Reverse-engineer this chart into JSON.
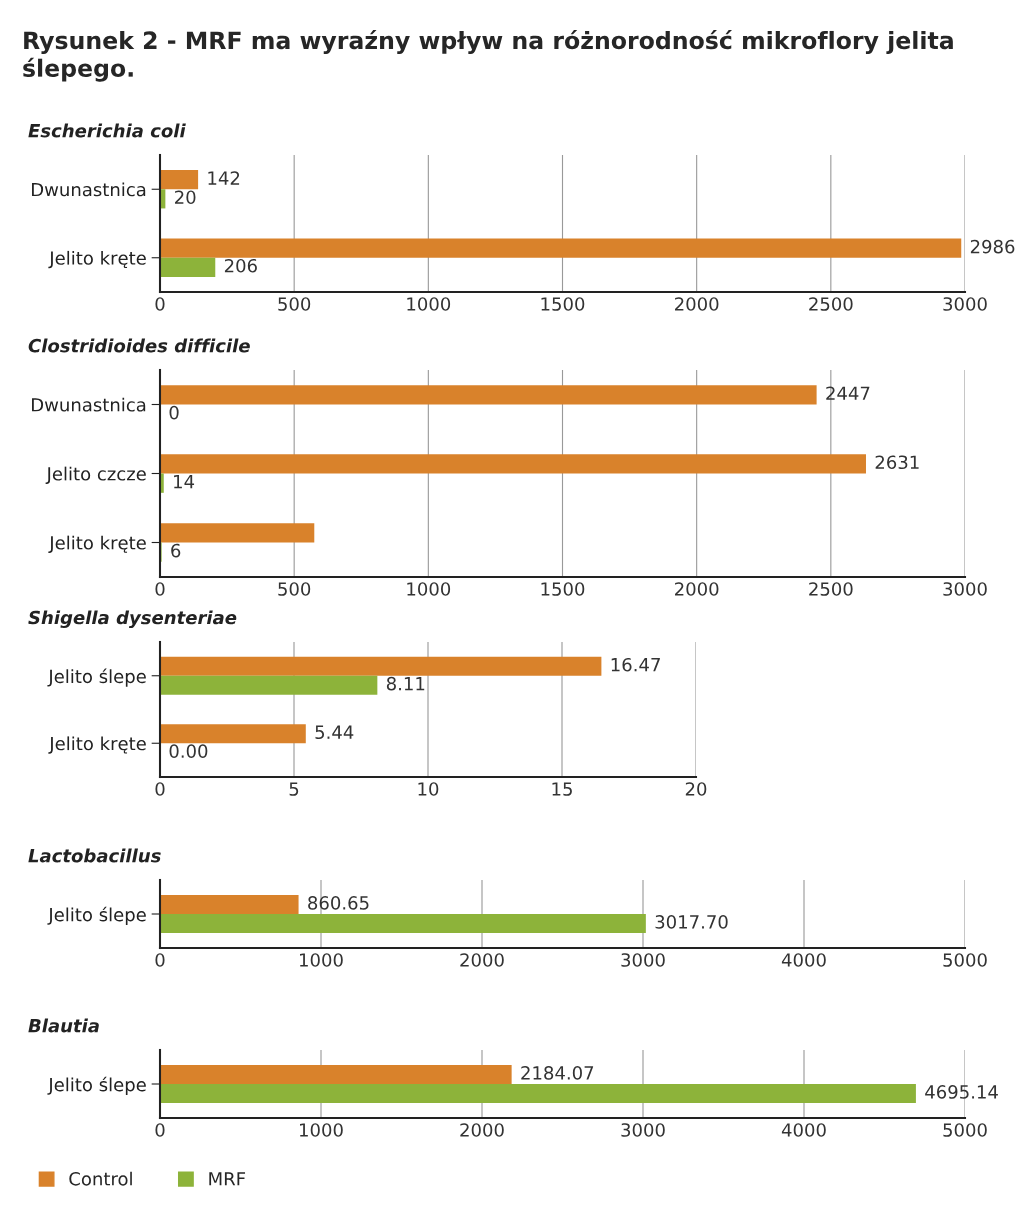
{
  "chart_data": [
    {
      "type": "bar",
      "orientation": "horizontal",
      "title": "Rysunek 2 - MRF ma wyraźny wpływ na różnorodność mikroflory jelita ślepego.",
      "subtitle": "Escherichia coli",
      "categories": [
        "Dwunastnica",
        "Jelito kręte"
      ],
      "xlim": [
        0,
        3000
      ],
      "xticks": [
        0,
        500,
        1000,
        1500,
        2000,
        2500,
        3000
      ],
      "grid": "x",
      "series": [
        {
          "color": "#d9822b",
          "values": [
            142,
            2986
          ],
          "value_labels": [
            "142",
            "2986"
          ]
        },
        {
          "color": "#8db33a",
          "values": [
            20,
            206
          ],
          "value_labels": [
            "20",
            "206"
          ]
        }
      ]
    },
    {
      "type": "bar",
      "orientation": "horizontal",
      "subtitle": "Clostridioides difficile",
      "categories": [
        "Dwunastnica",
        "Jelito czcze",
        "Jelito kręte"
      ],
      "xlim": [
        0,
        3000
      ],
      "xticks": [
        0,
        500,
        1000,
        1500,
        2000,
        2500,
        3000
      ],
      "grid": "x",
      "series": [
        {
          "color": "#d9822b",
          "values": [
            2447,
            2631,
            575
          ],
          "value_labels": [
            "2447",
            "2631",
            null
          ]
        },
        {
          "color": "#8db33a",
          "values": [
            0,
            14,
            6
          ],
          "value_labels": [
            "0",
            "14",
            "6"
          ]
        }
      ]
    },
    {
      "type": "bar",
      "orientation": "horizontal",
      "subtitle": "Shigella dysenteriae",
      "categories": [
        "Jelito ślepe",
        "Jelito kręte"
      ],
      "xlim": [
        0,
        20
      ],
      "xticks": [
        0,
        5,
        10,
        15,
        20
      ],
      "grid": "x",
      "series": [
        {
          "color": "#d9822b",
          "values": [
            16.47,
            5.44
          ],
          "value_labels": [
            "16.47",
            "5.44"
          ]
        },
        {
          "color": "#8db33a",
          "values": [
            8.11,
            0.0
          ],
          "value_labels": [
            "8.11",
            "0.00"
          ]
        }
      ]
    },
    {
      "type": "bar",
      "orientation": "horizontal",
      "subtitle": "Lactobacillus",
      "categories": [
        "Jelito ślepe"
      ],
      "xlim": [
        0,
        5000
      ],
      "xticks": [
        0,
        1000,
        2000,
        3000,
        4000,
        5000
      ],
      "grid": "x",
      "series": [
        {
          "color": "#d9822b",
          "values": [
            860.65
          ],
          "value_labels": [
            "860.65"
          ]
        },
        {
          "color": "#8db33a",
          "values": [
            3017.7
          ],
          "value_labels": [
            "3017.70"
          ]
        }
      ]
    },
    {
      "type": "bar",
      "orientation": "horizontal",
      "subtitle": "Blautia",
      "categories": [
        "Jelito ślepe"
      ],
      "xlim": [
        0,
        5000
      ],
      "xticks": [
        0,
        1000,
        2000,
        3000,
        4000,
        5000
      ],
      "grid": "x",
      "legend": "bottom left",
      "series": [
        {
          "name": "Control",
          "color": "#d9822b",
          "values": [
            2184.07
          ],
          "value_labels": [
            "2184.07"
          ]
        },
        {
          "name": "MRF",
          "color": "#8db33a",
          "values": [
            4695.14
          ],
          "value_labels": [
            "4695.14"
          ]
        }
      ]
    }
  ]
}
